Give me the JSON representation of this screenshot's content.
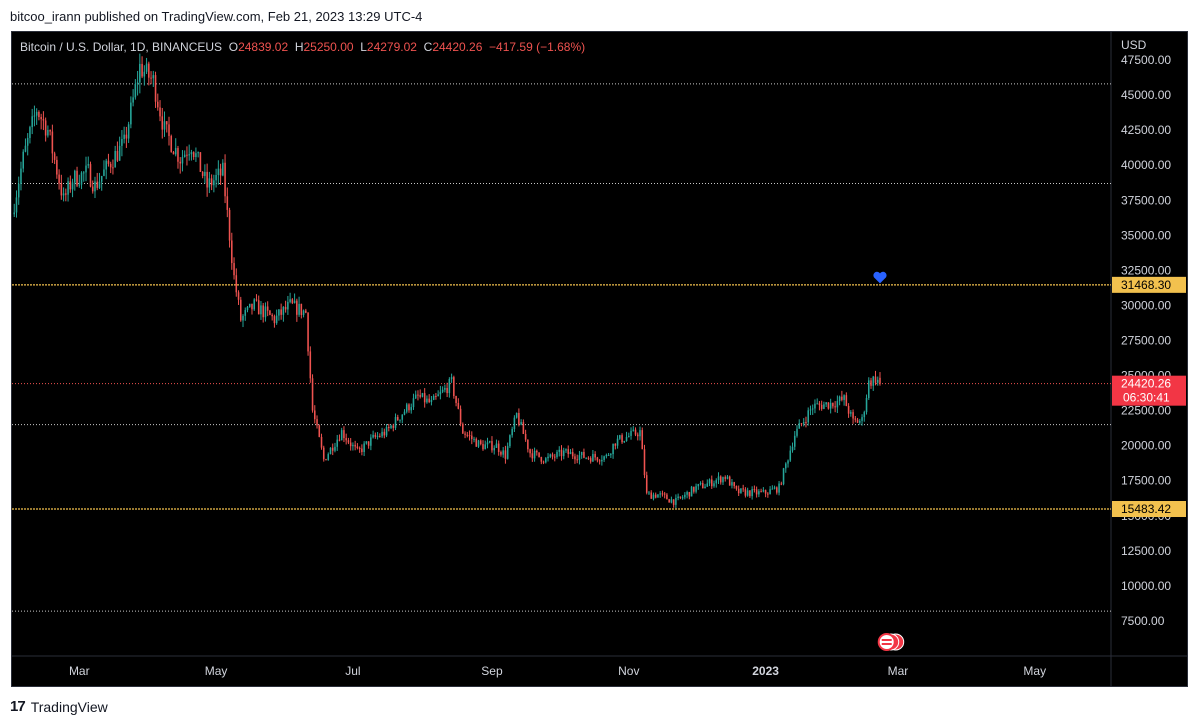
{
  "header": {
    "publisher_line": "bitcoo_irann published on TradingView.com, Feb 21, 2023 13:29 UTC-4"
  },
  "footer": {
    "brand": "TradingView",
    "logo_icon": "tradingview-logo-icon"
  },
  "colors": {
    "background": "#000000",
    "up": "#26a69a",
    "down": "#ef5350",
    "axis_text": "#d1d4dc",
    "support_line": "#f2c14e",
    "white_line": "#c8c8c8",
    "marker": "#2962ff",
    "price_label_bg": "#f23645",
    "level_label_bg": "#f2c14e"
  },
  "legend": {
    "symbol": "Bitcoin / U.S. Dollar, 1D, BINANCEUS",
    "o_label": "O",
    "o_value": "24839.02",
    "h_label": "H",
    "h_value": "25250.00",
    "l_label": "L",
    "l_value": "24279.02",
    "c_label": "C",
    "c_value": "24420.26",
    "change": "−417.59 (−1.68%)"
  },
  "price_tag": {
    "value": "24420.26",
    "countdown": "06:30:41"
  },
  "chart_data": {
    "type": "candlestick",
    "title": "Bitcoin / U.S. Dollar, 1D, BINANCEUS",
    "currency": "USD",
    "x_range": [
      "2022-01-30",
      "2023-06-04"
    ],
    "y_range": [
      5000,
      49500
    ],
    "y_ticks": [
      7500,
      10000,
      12500,
      15000,
      17500,
      20000,
      22500,
      25000,
      27500,
      30000,
      32500,
      35000,
      37500,
      40000,
      42500,
      45000,
      47500
    ],
    "y_tick_labels": [
      "7500.00",
      "10000.00",
      "12500.00",
      "15000.00",
      "17500.00",
      "20000.00",
      "22500.00",
      "25000.00",
      "27500.00",
      "30000.00",
      "32500.00",
      "35000.00",
      "37500.00",
      "40000.00",
      "42500.00",
      "45000.00",
      "47500.00"
    ],
    "x_ticks": [
      {
        "label": "Mar",
        "date": "2022-03-01"
      },
      {
        "label": "May",
        "date": "2022-05-01"
      },
      {
        "label": "Jul",
        "date": "2022-07-01"
      },
      {
        "label": "Sep",
        "date": "2022-09-01"
      },
      {
        "label": "Nov",
        "date": "2022-11-01"
      },
      {
        "label": "2023",
        "date": "2023-01-01"
      },
      {
        "label": "Mar",
        "date": "2023-03-01"
      },
      {
        "label": "May",
        "date": "2023-05-01"
      }
    ],
    "price_path": [
      [
        "2022-01-30",
        36500
      ],
      [
        "2022-02-04",
        40500
      ],
      [
        "2022-02-10",
        44000
      ],
      [
        "2022-02-15",
        42500
      ],
      [
        "2022-02-22",
        37500
      ],
      [
        "2022-02-26",
        39000
      ],
      [
        "2022-03-05",
        39500
      ],
      [
        "2022-03-08",
        38500
      ],
      [
        "2022-03-16",
        40500
      ],
      [
        "2022-03-21",
        41500
      ],
      [
        "2022-03-28",
        47000
      ],
      [
        "2022-04-03",
        46000
      ],
      [
        "2022-04-08",
        42500
      ],
      [
        "2022-04-15",
        40500
      ],
      [
        "2022-04-20",
        41500
      ],
      [
        "2022-04-27",
        38500
      ],
      [
        "2022-05-04",
        39500
      ],
      [
        "2022-05-09",
        32000
      ],
      [
        "2022-05-12",
        29000
      ],
      [
        "2022-05-18",
        30000
      ],
      [
        "2022-05-27",
        29000
      ],
      [
        "2022-06-03",
        30000
      ],
      [
        "2022-06-10",
        29500
      ],
      [
        "2022-06-13",
        22500
      ],
      [
        "2022-06-18",
        19000
      ],
      [
        "2022-06-26",
        21000
      ],
      [
        "2022-07-03",
        19500
      ],
      [
        "2022-07-10",
        20500
      ],
      [
        "2022-07-16",
        21000
      ],
      [
        "2022-07-24",
        22500
      ],
      [
        "2022-07-30",
        23500
      ],
      [
        "2022-08-05",
        23000
      ],
      [
        "2022-08-14",
        24500
      ],
      [
        "2022-08-19",
        21000
      ],
      [
        "2022-08-27",
        20000
      ],
      [
        "2022-09-03",
        20000
      ],
      [
        "2022-09-07",
        19300
      ],
      [
        "2022-09-12",
        22200
      ],
      [
        "2022-09-18",
        19500
      ],
      [
        "2022-09-25",
        19000
      ],
      [
        "2022-10-03",
        19500
      ],
      [
        "2022-10-13",
        19200
      ],
      [
        "2022-10-22",
        19200
      ],
      [
        "2022-10-26",
        20300
      ],
      [
        "2022-11-06",
        21000
      ],
      [
        "2022-11-09",
        16500
      ],
      [
        "2022-11-14",
        16500
      ],
      [
        "2022-11-22",
        16000
      ],
      [
        "2022-12-01",
        17000
      ],
      [
        "2022-12-05",
        17200
      ],
      [
        "2022-12-14",
        17800
      ],
      [
        "2022-12-19",
        16700
      ],
      [
        "2022-12-31",
        16600
      ],
      [
        "2023-01-07",
        17000
      ],
      [
        "2023-01-14",
        20800
      ],
      [
        "2023-01-22",
        22800
      ],
      [
        "2023-01-30",
        23000
      ],
      [
        "2023-02-05",
        23300
      ],
      [
        "2023-02-09",
        21700
      ],
      [
        "2023-02-13",
        21800
      ],
      [
        "2023-02-16",
        24500
      ],
      [
        "2023-02-19",
        24800
      ],
      [
        "2023-02-21",
        24420
      ]
    ],
    "last_candle": {
      "date": "2023-02-21",
      "open": 24839.02,
      "high": 25250.0,
      "low": 24279.02,
      "close": 24420.26
    },
    "horizontal_levels": [
      {
        "kind": "yellow",
        "value": 31468.3,
        "label": "31468.30"
      },
      {
        "kind": "yellow",
        "value": 15483.42,
        "label": "15483.42"
      },
      {
        "kind": "white-dotted",
        "value": 45800
      },
      {
        "kind": "white-dotted",
        "value": 38700
      },
      {
        "kind": "white-dotted",
        "value": 21500
      },
      {
        "kind": "white-dotted",
        "value": 8200
      },
      {
        "kind": "red-dotted",
        "value": 24420.26
      }
    ],
    "annotations": [
      {
        "kind": "heart-marker",
        "date": "2023-02-21",
        "value": 32000
      },
      {
        "kind": "events-icon",
        "date": "2023-02-24"
      }
    ]
  }
}
